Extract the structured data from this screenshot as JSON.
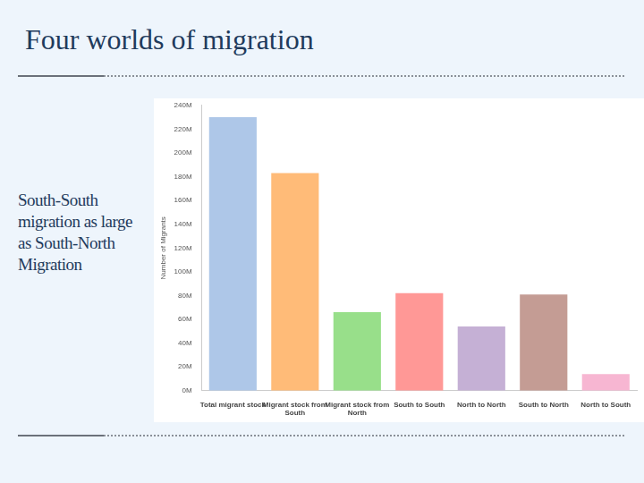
{
  "chart_data": {
    "type": "bar",
    "title": "Four worlds of migration",
    "annotations": [
      "South-South migration as large as South-North Migration"
    ],
    "y_label": "Number of Migrants",
    "categories": [
      "Total migrant stock",
      "Migrant stock from South",
      "Migrant stock from North",
      "South to South",
      "North to North",
      "South to North",
      "North to South"
    ],
    "values": [
      230,
      183,
      66,
      82,
      54,
      81,
      14
    ],
    "colors": [
      "#aec7e8",
      "#ffbb78",
      "#98df8a",
      "#ff9896",
      "#c5b0d5",
      "#c49c94",
      "#f7b6d2"
    ],
    "ylim": [
      0,
      240
    ],
    "yticks": [
      {
        "value": 0,
        "label": "0M"
      },
      {
        "value": 20,
        "label": "20M"
      },
      {
        "value": 40,
        "label": "40M"
      },
      {
        "value": 60,
        "label": "60M"
      },
      {
        "value": 80,
        "label": "80M"
      },
      {
        "value": 100,
        "label": "100M"
      },
      {
        "value": 120,
        "label": "120M"
      },
      {
        "value": 140,
        "label": "140M"
      },
      {
        "value": 160,
        "label": "160M"
      },
      {
        "value": 180,
        "label": "180M"
      },
      {
        "value": 200,
        "label": "200M"
      },
      {
        "value": 220,
        "label": "220M"
      },
      {
        "value": 240,
        "label": "240M"
      }
    ],
    "grid": false
  }
}
